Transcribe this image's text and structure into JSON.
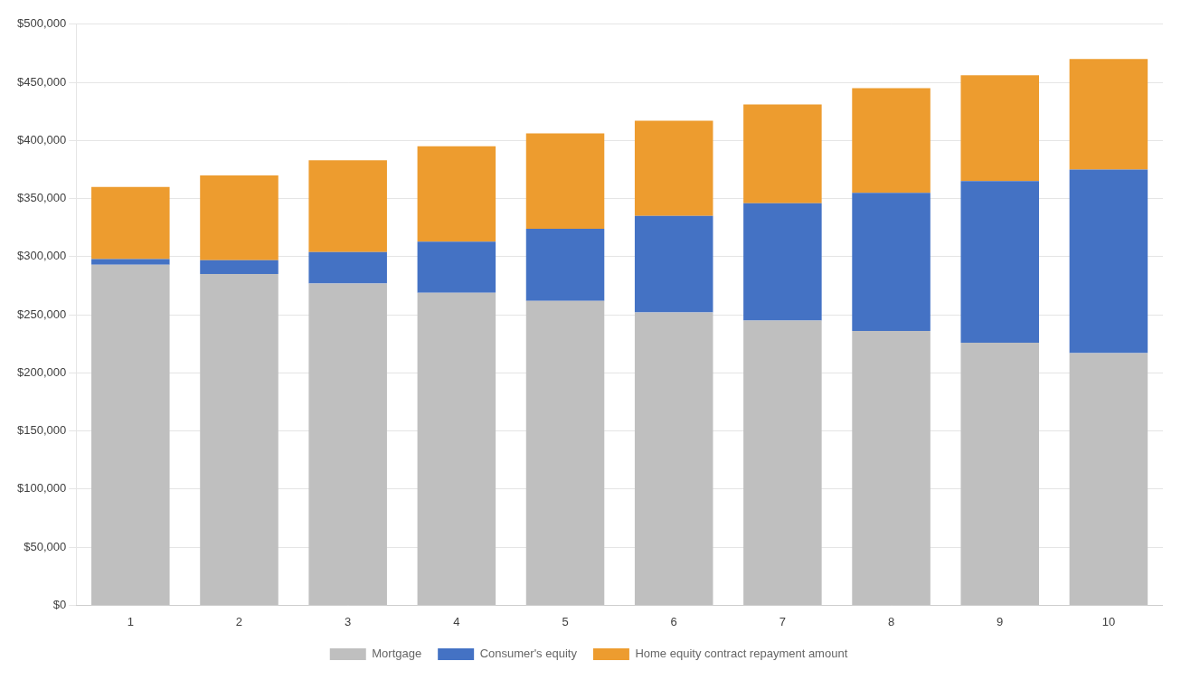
{
  "chart_data": {
    "type": "bar",
    "stacked": true,
    "categories": [
      "1",
      "2",
      "3",
      "4",
      "5",
      "6",
      "7",
      "8",
      "9",
      "10"
    ],
    "series": [
      {
        "name": "Mortgage",
        "color": "#bfbfbf",
        "values": [
          293000,
          285000,
          277000,
          269000,
          262000,
          252000,
          245000,
          236000,
          226000,
          217000
        ]
      },
      {
        "name": "Consumer's equity",
        "color": "#4472c4",
        "values": [
          5000,
          12000,
          27000,
          44000,
          62000,
          83000,
          101000,
          119000,
          139000,
          158000
        ]
      },
      {
        "name": "Home equity contract repayment amount",
        "color": "#ed9c2f",
        "values": [
          62000,
          73000,
          79000,
          82000,
          82000,
          82000,
          85000,
          90000,
          91000,
          95000
        ]
      }
    ],
    "ylim": [
      0,
      500000
    ],
    "yticks": [
      {
        "value": 0,
        "label": "$0"
      },
      {
        "value": 50000,
        "label": "$50,000"
      },
      {
        "value": 100000,
        "label": "$100,000"
      },
      {
        "value": 150000,
        "label": "$150,000"
      },
      {
        "value": 200000,
        "label": "$200,000"
      },
      {
        "value": 250000,
        "label": "$250,000"
      },
      {
        "value": 300000,
        "label": "$300,000"
      },
      {
        "value": 350000,
        "label": "$350,000"
      },
      {
        "value": 400000,
        "label": "$400,000"
      },
      {
        "value": 450000,
        "label": "$450,000"
      },
      {
        "value": 500000,
        "label": "$500,000"
      }
    ],
    "grid": true,
    "legend": "bottom"
  }
}
